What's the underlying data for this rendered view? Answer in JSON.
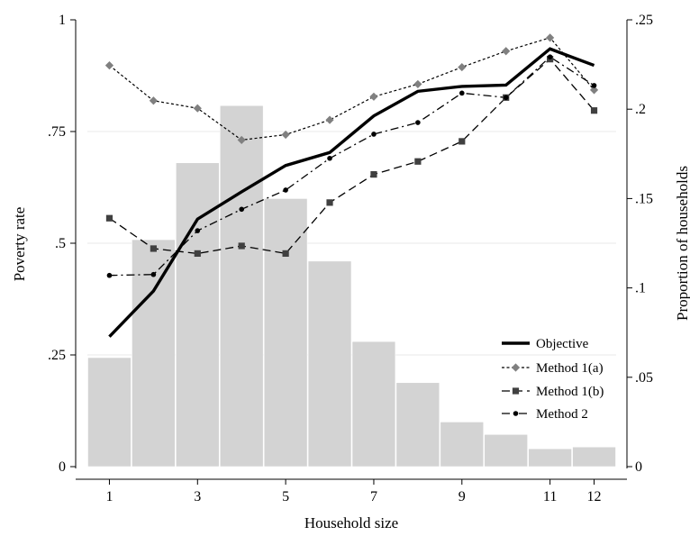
{
  "chart_data": {
    "type": "bar",
    "title": "",
    "xlabel": "Household size",
    "ylabel": "Poverty rate",
    "y2label": "Proportion of households",
    "x": [
      1,
      2,
      3,
      4,
      5,
      6,
      7,
      8,
      9,
      10,
      11,
      12
    ],
    "xticks": [
      "1",
      "3",
      "5",
      "7",
      "9",
      "11",
      "12"
    ],
    "xlim": [
      0.5,
      12.5
    ],
    "ylim": [
      0,
      1
    ],
    "yticks": [
      "0",
      ".25",
      ".5",
      ".75",
      "1"
    ],
    "y2lim": [
      0,
      0.25
    ],
    "y2ticks": [
      "0",
      ".05",
      ".1",
      ".15",
      ".2",
      ".25"
    ],
    "grid": true,
    "legend_position": "bottom-right",
    "bars": {
      "axis": "right",
      "color": "#d3d3d3",
      "values": [
        0.061,
        0.127,
        0.17,
        0.202,
        0.15,
        0.115,
        0.07,
        0.047,
        0.025,
        0.018,
        0.01,
        0.011
      ]
    },
    "series": [
      {
        "name": "Objective",
        "style": "solid-thick",
        "marker": "none",
        "color": "#000000",
        "values": [
          0.291,
          0.393,
          0.554,
          0.615,
          0.674,
          0.703,
          0.785,
          0.84,
          0.851,
          0.854,
          0.935,
          0.898
        ]
      },
      {
        "name": "Method 1(a)",
        "style": "short-dash",
        "marker": "diamond",
        "color": "#808080",
        "values": [
          0.898,
          0.819,
          0.802,
          0.731,
          0.743,
          0.776,
          0.828,
          0.856,
          0.894,
          0.93,
          0.96,
          0.843
        ]
      },
      {
        "name": "Method 1(b)",
        "style": "long-dash",
        "marker": "square",
        "color": "#404040",
        "values": [
          0.556,
          0.488,
          0.477,
          0.494,
          0.477,
          0.591,
          0.654,
          0.683,
          0.728,
          0.826,
          0.912,
          0.797
        ]
      },
      {
        "name": "Method 2",
        "style": "dash-dot",
        "marker": "circle",
        "color": "#000000",
        "values": [
          0.428,
          0.43,
          0.528,
          0.576,
          0.619,
          0.69,
          0.744,
          0.77,
          0.836,
          0.826,
          0.917,
          0.853
        ]
      }
    ]
  }
}
